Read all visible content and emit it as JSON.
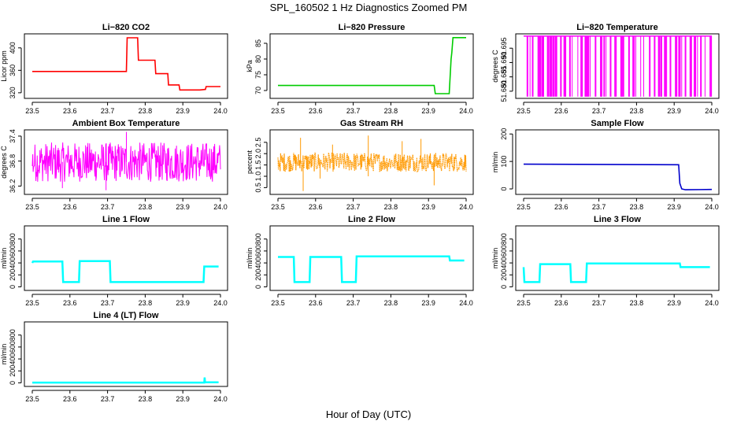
{
  "figure": {
    "title": "SPL_160502  1 Hz Diagnostics Zoomed PM",
    "xlabel": "Hour of Day (UTC)"
  },
  "chart_data": [
    {
      "type": "line",
      "title": "Li−820 CO2",
      "ylabel": "Licor ppm",
      "color": "#ff0000",
      "xlim": [
        23.5,
        24.0
      ],
      "ylim": [
        310,
        425
      ],
      "xticks": [
        "23.5",
        "23.6",
        "23.7",
        "23.8",
        "23.9",
        "24.0"
      ],
      "yticks": [
        320,
        360,
        400
      ],
      "ytick_labels": [
        "320",
        "360",
        "400"
      ],
      "series": [
        {
          "x": [
            23.5,
            23.75,
            23.752,
            23.78,
            23.782,
            23.826,
            23.828,
            23.86,
            23.862,
            23.89,
            23.892,
            23.945,
            23.96,
            23.962,
            24.0
          ],
          "y": [
            358,
            358,
            418,
            418,
            378,
            378,
            354,
            354,
            334,
            334,
            325,
            325,
            326,
            331,
            331
          ]
        }
      ]
    },
    {
      "type": "line",
      "title": "Li−820 Pressure",
      "ylabel": "kPa",
      "color": "#00cc00",
      "xlim": [
        23.5,
        24.0
      ],
      "ylim": [
        67.5,
        88
      ],
      "xticks": [
        "23.5",
        "23.6",
        "23.7",
        "23.8",
        "23.9",
        "24.0"
      ],
      "yticks": [
        70,
        75,
        80,
        85
      ],
      "ytick_labels": [
        "70",
        "75",
        "80",
        "85"
      ],
      "series": [
        {
          "x": [
            23.5,
            23.915,
            23.918,
            23.955,
            23.96,
            23.962,
            23.965,
            24.0
          ],
          "y": [
            71.6,
            71.6,
            69.0,
            69.0,
            80,
            82,
            86.8,
            86.8
          ]
        }
      ]
    },
    {
      "type": "line",
      "title": "Li−820 Temperature",
      "ylabel": "degrees C",
      "color": "#ff00ff",
      "xlim": [
        23.5,
        24.0
      ],
      "ylim": [
        51.6775,
        51.7
      ],
      "xticks": [
        "23.5",
        "23.6",
        "23.7",
        "23.8",
        "23.9",
        "24.0"
      ],
      "yticks": [
        51.68,
        51.685,
        51.69,
        51.695
      ],
      "ytick_labels": [
        "51.680",
        "51.685",
        "51.690",
        "51.695"
      ],
      "baseline": 51.6992,
      "low": 51.6781,
      "spikes_x": [
        23.508,
        23.516,
        23.522,
        23.537,
        23.541,
        23.548,
        23.552,
        23.562,
        23.569,
        23.576,
        23.583,
        23.597,
        23.606,
        23.611,
        23.621,
        23.628,
        23.643,
        23.651,
        23.662,
        23.668,
        23.676,
        23.689,
        23.703,
        23.712,
        23.718,
        23.729,
        23.741,
        23.757,
        23.763,
        23.778,
        23.789,
        23.797,
        23.81,
        23.818,
        23.833,
        23.846,
        23.857,
        23.864,
        23.873,
        23.879,
        23.888,
        23.902,
        23.911,
        23.919,
        23.928,
        23.941,
        23.952,
        23.961,
        23.969,
        23.981,
        23.994
      ]
    },
    {
      "type": "line",
      "title": "Ambient Box Temperature",
      "ylabel": "degrees C",
      "color": "#ff00ff",
      "xlim": [
        23.5,
        24.0
      ],
      "ylim": [
        36.0,
        37.55
      ],
      "xticks": [
        "23.5",
        "23.6",
        "23.7",
        "23.8",
        "23.9",
        "24.0"
      ],
      "yticks": [
        36.2,
        36.8,
        37.4
      ],
      "ytick_labels": [
        "36.2",
        "36.8",
        "37.4"
      ],
      "band": {
        "low": 36.3,
        "high": 37.25,
        "center": 36.78,
        "outliers": [
          [
            23.696,
            36.1
          ],
          [
            23.75,
            37.5
          ],
          [
            23.58,
            36.15
          ]
        ]
      }
    },
    {
      "type": "scatter",
      "title": "Gas Stream RH",
      "ylabel": "percent",
      "color": "#ff9900",
      "xlim": [
        23.5,
        24.0
      ],
      "ylim": [
        0.2,
        3.05
      ],
      "xticks": [
        "23.5",
        "23.6",
        "23.7",
        "23.8",
        "23.9",
        "24.0"
      ],
      "yticks": [
        0.5,
        1.0,
        1.5,
        2.0,
        2.5
      ],
      "ytick_labels": [
        "0.5",
        "1.0",
        "1.5",
        "2.0",
        "2.5"
      ],
      "band": {
        "low": 1.2,
        "high": 2.05,
        "center": 1.6,
        "outliers": [
          [
            23.56,
            2.7
          ],
          [
            23.567,
            0.35
          ],
          [
            23.645,
            2.4
          ],
          [
            23.74,
            2.8
          ],
          [
            23.74,
            1.0
          ],
          [
            23.83,
            2.55
          ],
          [
            23.88,
            2.65
          ],
          [
            23.915,
            0.6
          ],
          [
            23.612,
            0.9
          ]
        ]
      }
    },
    {
      "type": "line",
      "title": "Sample Flow",
      "ylabel": "ml/min",
      "color": "#0000cc",
      "xlim": [
        23.5,
        24.0
      ],
      "ylim": [
        -20,
        215
      ],
      "xticks": [
        "23.5",
        "23.6",
        "23.7",
        "23.8",
        "23.9",
        "24.0"
      ],
      "yticks": [
        0,
        100,
        200
      ],
      "ytick_labels": [
        "0",
        "100",
        "200"
      ],
      "series": [
        {
          "x": [
            23.5,
            23.912,
            23.915,
            23.92,
            23.93,
            24.0
          ],
          "y": [
            90,
            88,
            20,
            0,
            -3,
            -2
          ]
        }
      ]
    },
    {
      "type": "line",
      "title": "Line 1 Flow",
      "ylabel": "ml/min",
      "color": "#00ffff",
      "xlim": [
        23.5,
        24.0
      ],
      "ylim": [
        -60,
        1020
      ],
      "xticks": [
        "23.5",
        "23.6",
        "23.7",
        "23.8",
        "23.9",
        "24.0"
      ],
      "yticks": [
        0,
        200,
        400,
        600,
        800
      ],
      "ytick_labels": [
        "0",
        "200",
        "400",
        "600",
        "800"
      ],
      "series": [
        {
          "x": [
            23.5,
            23.502,
            23.58,
            23.582,
            23.624,
            23.626,
            23.706,
            23.708,
            23.955,
            23.957,
            23.995
          ],
          "y": [
            400,
            425,
            425,
            80,
            80,
            430,
            430,
            80,
            80,
            340,
            340
          ]
        }
      ]
    },
    {
      "type": "line",
      "title": "Line 2 Flow",
      "ylabel": "ml/min",
      "color": "#00ffff",
      "xlim": [
        23.5,
        24.0
      ],
      "ylim": [
        -60,
        1020
      ],
      "xticks": [
        "23.5",
        "23.6",
        "23.7",
        "23.8",
        "23.9",
        "24.0"
      ],
      "yticks": [
        0,
        200,
        400,
        600,
        800
      ],
      "ytick_labels": [
        "0",
        "200",
        "400",
        "600",
        "800"
      ],
      "series": [
        {
          "x": [
            23.5,
            23.542,
            23.544,
            23.584,
            23.586,
            23.668,
            23.67,
            23.707,
            23.709,
            23.955,
            23.957,
            23.995
          ],
          "y": [
            500,
            500,
            80,
            80,
            500,
            500,
            80,
            80,
            510,
            510,
            440,
            440
          ]
        }
      ]
    },
    {
      "type": "line",
      "title": "Line 3 Flow",
      "ylabel": "ml/min",
      "color": "#00ffff",
      "xlim": [
        23.5,
        24.0
      ],
      "ylim": [
        -60,
        1020
      ],
      "xticks": [
        "23.5",
        "23.6",
        "23.7",
        "23.8",
        "23.9",
        "24.0"
      ],
      "yticks": [
        0,
        200,
        400,
        600,
        800
      ],
      "ytick_labels": [
        "0",
        "200",
        "400",
        "600",
        "800"
      ],
      "series": [
        {
          "x": [
            23.5,
            23.502,
            23.542,
            23.544,
            23.624,
            23.626,
            23.666,
            23.668,
            23.915,
            23.917,
            23.995
          ],
          "y": [
            330,
            80,
            80,
            380,
            380,
            80,
            80,
            390,
            390,
            330,
            330
          ]
        }
      ]
    },
    {
      "type": "line",
      "title": "Line 4 (LT) Flow",
      "ylabel": "ml/min",
      "color": "#00ffff",
      "xlim": [
        23.5,
        24.0
      ],
      "ylim": [
        -60,
        1020
      ],
      "xticks": [
        "23.5",
        "23.6",
        "23.7",
        "23.8",
        "23.9",
        "24.0"
      ],
      "yticks": [
        0,
        200,
        400,
        600,
        800
      ],
      "ytick_labels": [
        "0",
        "200",
        "400",
        "600",
        "800"
      ],
      "series": [
        {
          "x": [
            23.5,
            23.957,
            23.958,
            23.959,
            23.995
          ],
          "y": [
            5,
            5,
            90,
            8,
            8
          ]
        }
      ]
    }
  ]
}
